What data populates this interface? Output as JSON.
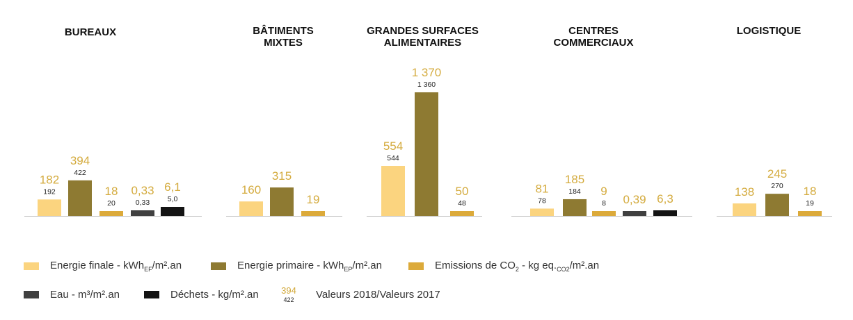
{
  "colors": {
    "energie_finale": "#fbd47f",
    "energie_primaire": "#8e7a32",
    "emissions_co2": "#dcaa3a",
    "eau": "#404040",
    "dechets": "#141414",
    "value_2018": "#d4ab3e",
    "value_2017": "#222222",
    "baseline": "#bdbdbd"
  },
  "legend": {
    "energie_finale": "Energie finale - kWh",
    "energie_finale_sub": "EF",
    "energie_finale_tail": "/m².an",
    "energie_primaire": "Energie primaire - kWh",
    "energie_primaire_sub": "EP",
    "energie_primaire_tail": "/m².an",
    "emissions": "Emissions de CO",
    "emissions_sub": "2",
    "emissions_mid": " - kg eq.",
    "emissions_sub2": "CO2",
    "emissions_tail": "/m².an",
    "eau": "Eau - m³/m².an",
    "dechets": "Déchets - kg/m².an",
    "sample_2018": "394",
    "sample_2017": "422",
    "valeurs": "Valeurs 2018/Valeurs 2017"
  },
  "chart_data": [
    {
      "type": "bar",
      "title": "BUREAUX",
      "categories": [
        "Energie finale",
        "Energie primaire",
        "Emissions de CO2",
        "Eau",
        "Déchets"
      ],
      "series": [
        {
          "name": "2018",
          "values": [
            182,
            394,
            18,
            0.33,
            6.1
          ],
          "labels": [
            "182",
            "394",
            "18",
            "0,33",
            "6,1"
          ]
        },
        {
          "name": "2017",
          "values": [
            192,
            422,
            20,
            0.33,
            5.0
          ],
          "labels": [
            "192",
            "422",
            "20",
            "0,33",
            "5,0"
          ]
        }
      ]
    },
    {
      "type": "bar",
      "title": "BÂTIMENTS MIXTES",
      "categories": [
        "Energie finale",
        "Energie primaire",
        "Emissions de CO2"
      ],
      "series": [
        {
          "name": "2018",
          "values": [
            160,
            315,
            19
          ],
          "labels": [
            "160",
            "315",
            "19"
          ]
        },
        {
          "name": "2017",
          "values": [
            null,
            null,
            null
          ],
          "labels": [
            "",
            "",
            ""
          ]
        }
      ]
    },
    {
      "type": "bar",
      "title": "GRANDES SURFACES ALIMENTAIRES",
      "categories": [
        "Energie finale",
        "Energie primaire",
        "Emissions de CO2"
      ],
      "series": [
        {
          "name": "2018",
          "values": [
            554,
            1370,
            50
          ],
          "labels": [
            "554",
            "1 370",
            "50"
          ]
        },
        {
          "name": "2017",
          "values": [
            544,
            1360,
            48
          ],
          "labels": [
            "544",
            "1 360",
            "48"
          ]
        }
      ]
    },
    {
      "type": "bar",
      "title": "CENTRES COMMERCIAUX",
      "categories": [
        "Energie finale",
        "Energie primaire",
        "Emissions de CO2",
        "Eau",
        "Déchets"
      ],
      "series": [
        {
          "name": "2018",
          "values": [
            81,
            185,
            9,
            0.39,
            6.3
          ],
          "labels": [
            "81",
            "185",
            "9",
            "0,39",
            "6,3"
          ]
        },
        {
          "name": "2017",
          "values": [
            78,
            184,
            8,
            null,
            null
          ],
          "labels": [
            "78",
            "184",
            "8",
            "",
            ""
          ]
        }
      ]
    },
    {
      "type": "bar",
      "title": "LOGISTIQUE",
      "categories": [
        "Energie finale",
        "Energie primaire",
        "Emissions de CO2"
      ],
      "series": [
        {
          "name": "2018",
          "values": [
            138,
            245,
            18
          ],
          "labels": [
            "138",
            "245",
            "18"
          ]
        },
        {
          "name": "2017",
          "values": [
            null,
            270,
            19
          ],
          "labels": [
            "",
            "270",
            "19"
          ]
        }
      ]
    }
  ]
}
